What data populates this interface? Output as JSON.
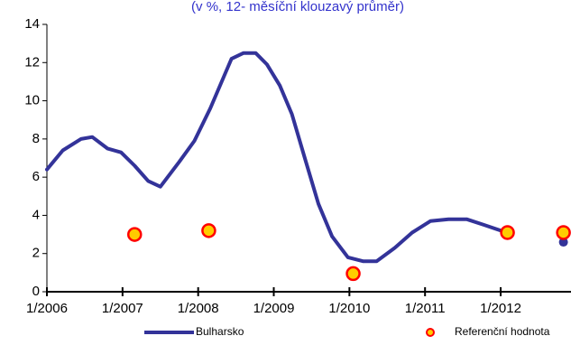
{
  "chart_data": {
    "type": "line",
    "subtitle": "(v %, 12- měsíční klouzavý průměr)",
    "x": [
      2006.0,
      2006.21,
      2006.45,
      2006.6,
      2006.8,
      2006.98,
      2007.16,
      2007.34,
      2007.5,
      2007.75,
      2007.95,
      2008.16,
      2008.44,
      2008.6,
      2008.76,
      2008.91,
      2009.08,
      2009.24,
      2009.41,
      2009.59,
      2009.77,
      2009.98,
      2010.18,
      2010.36,
      2010.6,
      2010.83,
      2011.07,
      2011.31,
      2011.55,
      2011.78,
      2012.08,
      2012.5,
      2012.83
    ],
    "series": [
      {
        "name": "Bulharsko",
        "color": "#333399",
        "values": [
          6.4,
          7.4,
          8.0,
          8.1,
          7.5,
          7.3,
          6.6,
          5.8,
          5.5,
          6.8,
          7.9,
          9.6,
          12.2,
          12.5,
          12.5,
          11.9,
          10.8,
          9.3,
          7.0,
          4.6,
          2.9,
          1.8,
          1.6,
          1.6,
          2.3,
          3.1,
          3.7,
          3.8,
          3.8,
          3.5,
          3.1,
          null,
          2.6
        ]
      }
    ],
    "reference": {
      "name": "Referenční hodnota",
      "color": "#ffcc00",
      "edge": "#ff0000",
      "x": [
        2007.16,
        2008.14,
        2010.05,
        2012.09,
        2012.83
      ],
      "values": [
        3.0,
        3.2,
        0.95,
        3.1,
        3.1
      ]
    },
    "xlim": [
      2006,
      2012.93
    ],
    "xticks": [
      {
        "value": 2006,
        "label": "1/2006"
      },
      {
        "value": 2007,
        "label": "1/2007"
      },
      {
        "value": 2008,
        "label": "1/2008"
      },
      {
        "value": 2009,
        "label": "1/2009"
      },
      {
        "value": 2010,
        "label": "1/2010"
      },
      {
        "value": 2011,
        "label": "1/2011"
      },
      {
        "value": 2012,
        "label": "1/2012"
      }
    ],
    "ylim": [
      0,
      14
    ],
    "yticks": [
      0,
      2,
      4,
      6,
      8,
      10,
      12,
      14
    ]
  }
}
